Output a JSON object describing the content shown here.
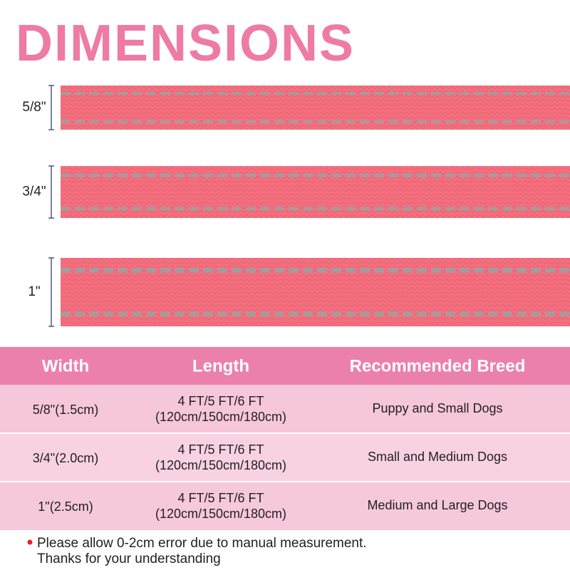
{
  "header": {
    "title": "DIMENSIONS"
  },
  "straps": [
    {
      "label": "5/8\""
    },
    {
      "label": "3/4\""
    },
    {
      "label": "1\""
    }
  ],
  "table": {
    "columns": [
      "Width",
      "Length",
      "Recommended Breed"
    ],
    "rows": [
      [
        "5/8\"(1.5cm)",
        [
          "4 FT/5 FT/6 FT",
          "(120cm/150cm/180cm)"
        ],
        "Puppy and Small Dogs"
      ],
      [
        "3/4\"(2.0cm)",
        [
          "4 FT/5 FT/6 FT",
          "(120cm/150cm/180cm)"
        ],
        "Small and Medium Dogs"
      ],
      [
        "1\"(2.5cm)",
        [
          "4 FT/5 FT/6 FT",
          "(120cm/150cm/180cm)"
        ],
        "Medium and Large Dogs"
      ]
    ]
  },
  "note": {
    "lines": [
      "Please allow 0-2cm error due to manual measurement.",
      "Thanks for your understanding"
    ]
  }
}
